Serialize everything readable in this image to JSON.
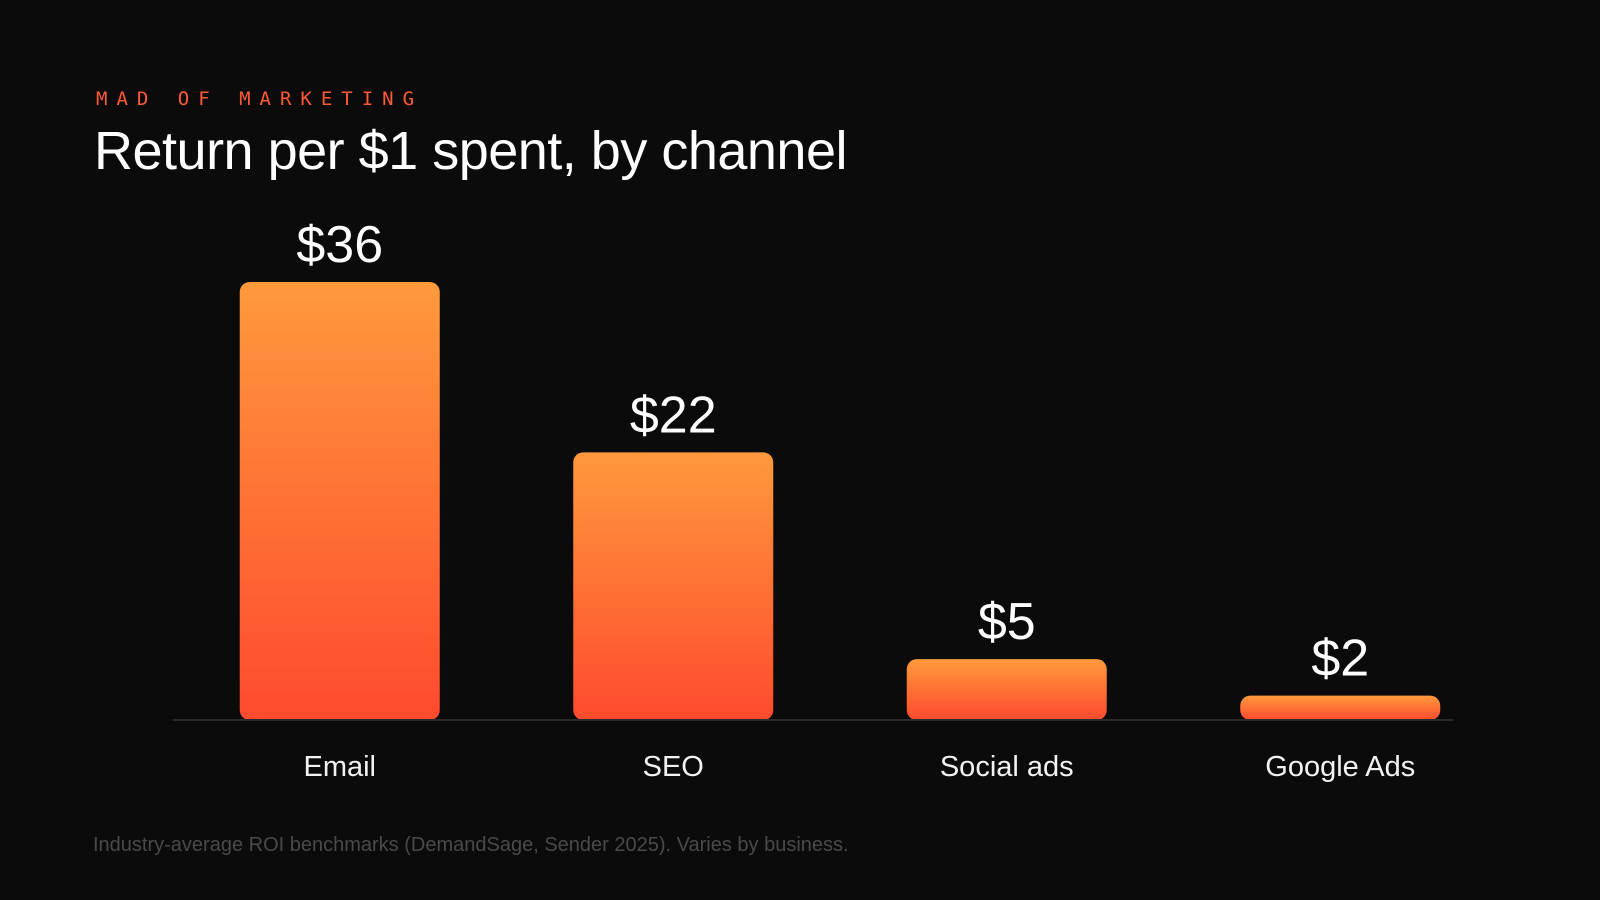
{
  "header": {
    "eyebrow": "MAD OF MARKETING",
    "title": "Return per $1 spent, by channel"
  },
  "footnote": "Industry-average ROI benchmarks (DemandSage, Sender 2025). Varies by business.",
  "colors": {
    "background": "#0b0b0b",
    "accent": "#ff5a36",
    "bar_top": "#ff9a3c",
    "bar_bottom": "#ff4a2e",
    "baseline": "#2a2a2a"
  },
  "chart_data": {
    "type": "bar",
    "title": "Return per $1 spent, by channel",
    "xlabel": "",
    "ylabel": "",
    "categories": [
      "Email",
      "SEO",
      "Social ads",
      "Google Ads"
    ],
    "values": [
      36,
      22,
      5,
      2
    ],
    "value_labels": [
      "$36",
      "$22",
      "$5",
      "$2"
    ],
    "ylim": [
      0,
      36
    ],
    "grid": false,
    "legend": "none"
  }
}
